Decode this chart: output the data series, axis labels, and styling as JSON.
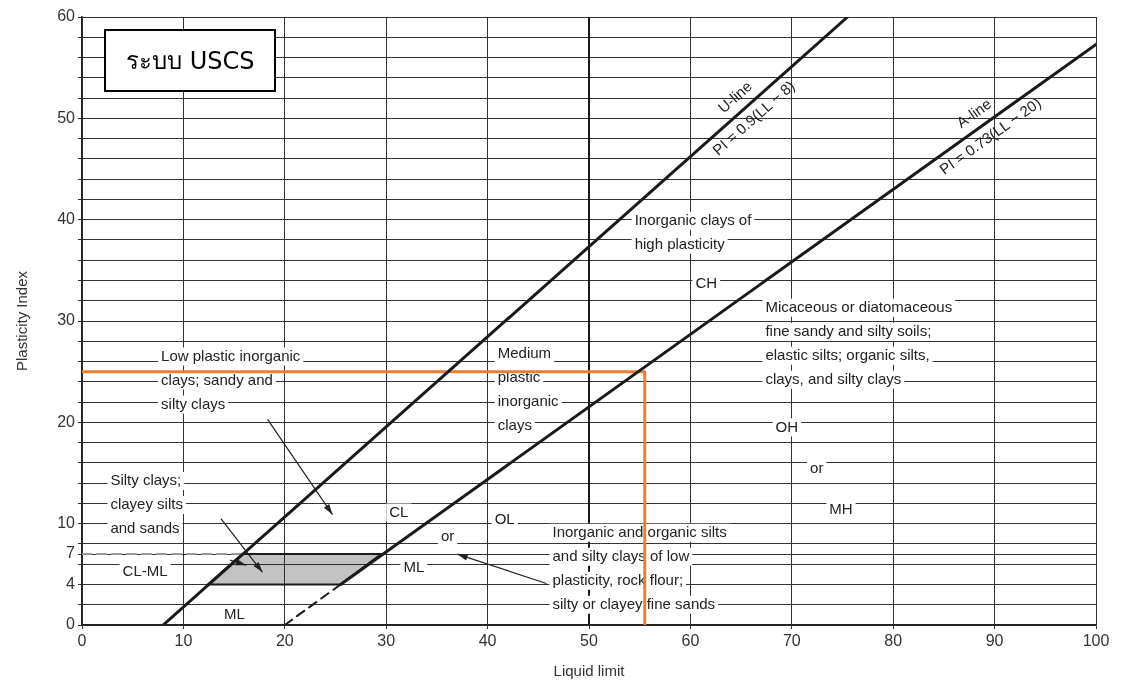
{
  "chart_data": {
    "type": "line",
    "title": "ระบบ USCS",
    "xlabel": "Liquid limit",
    "ylabel": "Plasticity Index",
    "xlim": [
      0,
      100
    ],
    "xticks": [
      0,
      10,
      20,
      30,
      40,
      50,
      60,
      70,
      80,
      90,
      100
    ],
    "ylim": [
      0,
      60
    ],
    "yticks": [
      0,
      {
        "value": 2,
        "label": null
      },
      4,
      {
        "value": 6,
        "label": null
      },
      7,
      {
        "value": 8,
        "label": null
      },
      10,
      {
        "value": 12,
        "label": null
      },
      {
        "value": 14,
        "label": null
      },
      {
        "value": 16,
        "label": null
      },
      {
        "value": 18,
        "label": null
      },
      20,
      {
        "value": 22,
        "label": null
      },
      {
        "value": 24,
        "label": null
      },
      {
        "value": 26,
        "label": null
      },
      {
        "value": 28,
        "label": null
      },
      30,
      {
        "value": 32,
        "label": null
      },
      {
        "value": 34,
        "label": null
      },
      {
        "value": 36,
        "label": null
      },
      {
        "value": 38,
        "label": null
      },
      40,
      {
        "value": 42,
        "label": null
      },
      {
        "value": 44,
        "label": null
      },
      {
        "value": 46,
        "label": null
      },
      {
        "value": 48,
        "label": null
      },
      50,
      {
        "value": 52,
        "label": null
      },
      {
        "value": 54,
        "label": null
      },
      {
        "value": 56,
        "label": null
      },
      {
        "value": 58,
        "label": null
      },
      60
    ],
    "grid": true,
    "legend": false,
    "marker": "none",
    "line_style": "solid",
    "series": [
      {
        "name": "U-line\nPI = 0.9(LL − 8)",
        "color": "#1a1a1a",
        "x": [
          8,
          75.5
        ],
        "values": [
          0,
          60
        ]
      },
      {
        "name": "A-line\nPI = 0.73(LL − 20)",
        "color": "#1a1a1a",
        "x": [
          25.5,
          100
        ],
        "values": [
          4,
          57.3
        ]
      },
      {
        "color": "#1a1a1a",
        "x": [
          20,
          25.5
        ],
        "values": [
          0,
          4
        ],
        "line_style": "dashed"
      },
      {
        "color": "#999999",
        "x": [
          0,
          15.8
        ],
        "values": [
          7,
          7
        ],
        "line_style": "dashed"
      },
      {
        "type": "area",
        "color": "#1a1a1a",
        "x": [
          12.4,
          15.8,
          29.5,
          25.5
        ],
        "values": [
          4,
          7,
          7,
          4
        ]
      },
      {
        "color": "#ed7d31",
        "x": [
          0,
          55.5,
          55.5
        ],
        "values": [
          25,
          25,
          0
        ]
      }
    ],
    "ref_lines": [
      {
        "axis": "x",
        "value": 50,
        "color": "#1a1a1a"
      }
    ],
    "annotations": [
      "Inorganic clays of\nhigh plasticity",
      "CH",
      "Micaceous or diatomaceous\nfine sandy and silty soils;\nelastic silts; organic silts,\nclays, and silty clays",
      "OH",
      "or",
      "MH",
      "Inorganic and organic silts\nand silty clays of low\nplasticity, rock flour;\nsilty or clayey fine sands",
      "Medium\nplastic\ninorganic\nclays",
      "Low plastic inorganic\nclays; sandy and\nsilty clays",
      "Silty clays;\nclayey silts\nand sands",
      "CL",
      "or",
      "OL",
      "ML",
      "CL-ML",
      "ML"
    ]
  }
}
